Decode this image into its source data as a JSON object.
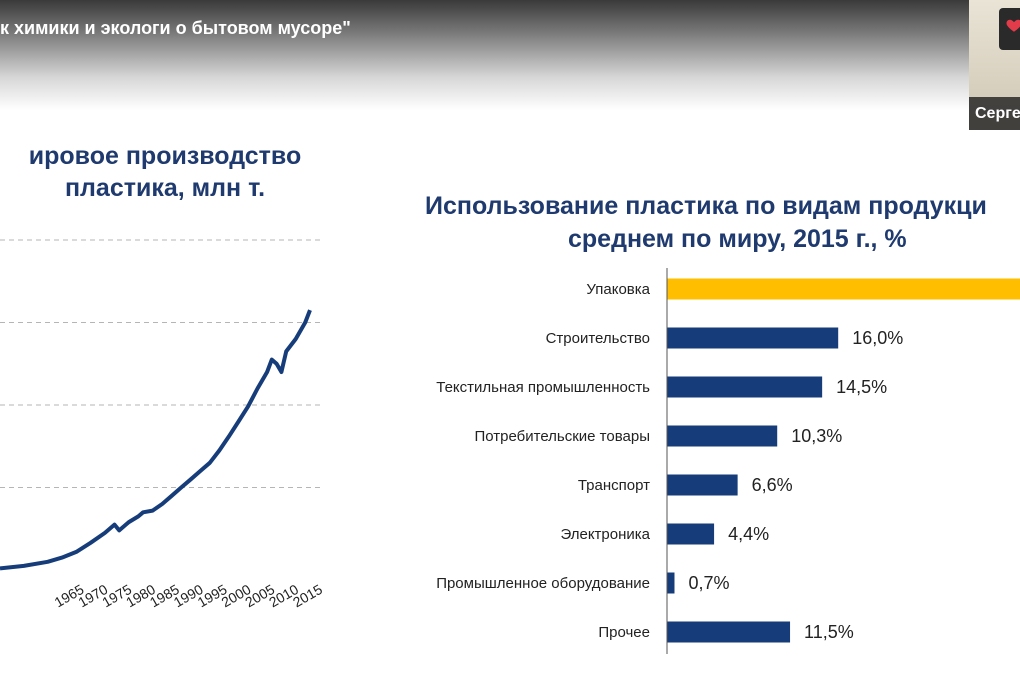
{
  "video": {
    "title": "к химики и экологи о бытовом мусоре\"",
    "webcam_name": "Серге"
  },
  "colors": {
    "title": "#1f3a6e",
    "bar": "#163d7a",
    "highlight": "#ffbf00",
    "line": "#163d7a"
  },
  "chart_data": [
    {
      "type": "line",
      "title_line1": "ировое производство",
      "title_line2": "пластика, млн т.",
      "x_ticks": [
        "1965",
        "1970",
        "1975",
        "1980",
        "1985",
        "1990",
        "1995",
        "2000",
        "2005",
        "2010",
        "2015"
      ],
      "x_range": [
        1950,
        2015
      ],
      "grid": true,
      "series": [
        {
          "x": [
            1950,
            1955,
            1960,
            1963,
            1966,
            1969,
            1972,
            1974,
            1975,
            1977,
            1979,
            1980,
            1982,
            1984,
            1986,
            1988,
            1990,
            1992,
            1994,
            1996,
            1998,
            2000,
            2002,
            2004,
            2006,
            2007,
            2008,
            2009,
            2010,
            2012,
            2014,
            2015
          ],
          "y": [
            2,
            5,
            10,
            15,
            22,
            33,
            45,
            55,
            48,
            58,
            65,
            70,
            72,
            80,
            90,
            100,
            110,
            120,
            130,
            145,
            162,
            180,
            198,
            220,
            240,
            255,
            250,
            240,
            265,
            280,
            300,
            315
          ]
        }
      ]
    },
    {
      "type": "bar",
      "orientation": "horizontal",
      "title_line1": "Использование пластика по видам продукци",
      "title_line2": "среднем по миру, 2015 г., %",
      "categories": [
        "Упаковка",
        "Строительство",
        "Текстильная промышленность",
        "Потребительские товары",
        "Транспорт",
        "Электроника",
        "Промышленное оборудование",
        "Прочее"
      ],
      "values": [
        36.0,
        16.0,
        14.5,
        10.3,
        6.6,
        4.4,
        0.7,
        11.5
      ],
      "labels": [
        "",
        "16,0%",
        "14,5%",
        "10,3%",
        "6,6%",
        "4,4%",
        "0,7%",
        "11,5%"
      ],
      "highlight_index": 0
    }
  ]
}
